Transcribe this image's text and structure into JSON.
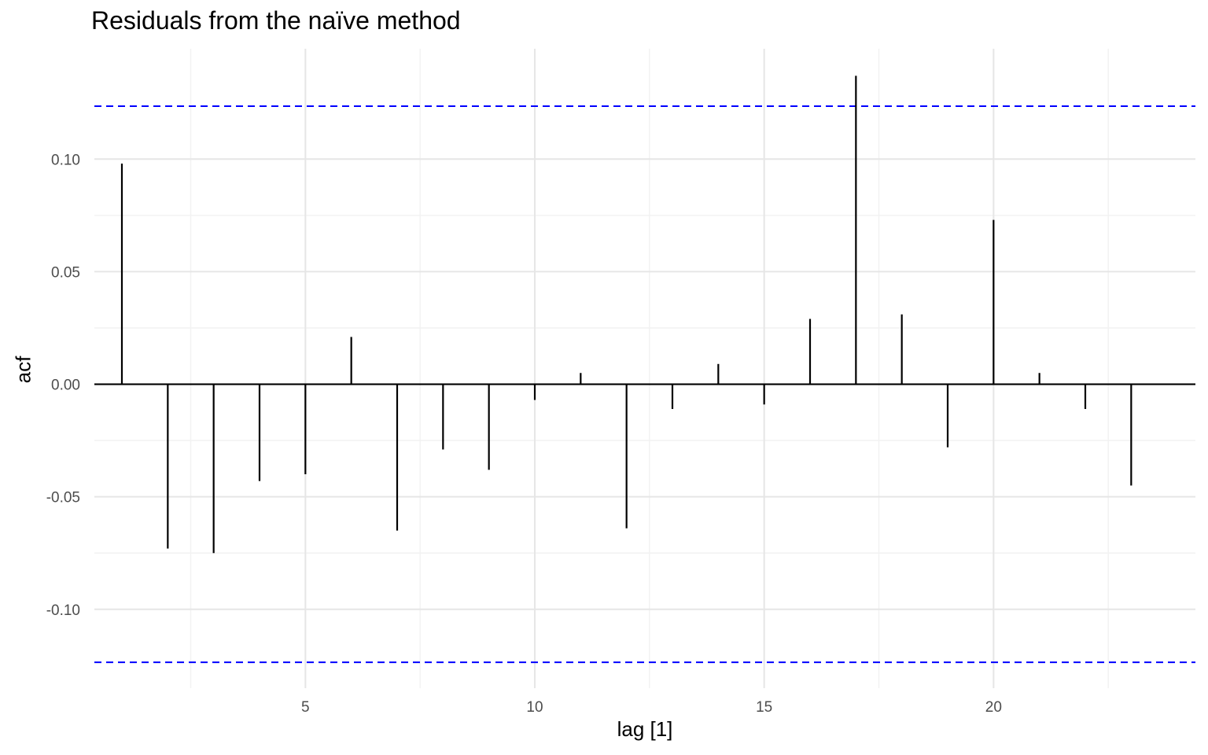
{
  "chart_data": {
    "type": "bar",
    "title": "Residuals from the naïve method",
    "xlabel": "lag [1]",
    "ylabel": "acf",
    "x": [
      1,
      2,
      3,
      4,
      5,
      6,
      7,
      8,
      9,
      10,
      11,
      12,
      13,
      14,
      15,
      16,
      17,
      18,
      19,
      20,
      21,
      22,
      23
    ],
    "values": [
      0.098,
      -0.073,
      -0.075,
      -0.043,
      -0.04,
      0.021,
      -0.065,
      -0.029,
      -0.038,
      -0.007,
      0.005,
      -0.064,
      -0.011,
      0.009,
      -0.009,
      0.029,
      0.137,
      0.031,
      -0.028,
      0.073,
      0.005,
      -0.011,
      -0.045
    ],
    "xlim": [
      0.4,
      24.4
    ],
    "ylim": [
      -0.135,
      0.149
    ],
    "x_ticks": [
      5,
      10,
      15,
      20
    ],
    "x_tick_labels": [
      "5",
      "10",
      "15",
      "20"
    ],
    "x_minor_ticks": [
      2.5,
      7.5,
      12.5,
      17.5,
      22.5
    ],
    "y_ticks": [
      -0.1,
      -0.05,
      0.0,
      0.05,
      0.1
    ],
    "y_tick_labels": [
      "-0.10",
      "-0.05",
      "0.00",
      "0.05",
      "0.10"
    ],
    "y_minor_ticks": [
      -0.075,
      -0.025,
      0.025,
      0.075
    ],
    "confidence_bounds": [
      -0.1235,
      0.1235
    ],
    "grid": true,
    "colors": {
      "bars": "#000000",
      "bounds": "#0000ff",
      "grid_major": "#e6e6e6",
      "grid_minor": "#f2f2f2",
      "tick_text": "#4d4d4d"
    }
  }
}
